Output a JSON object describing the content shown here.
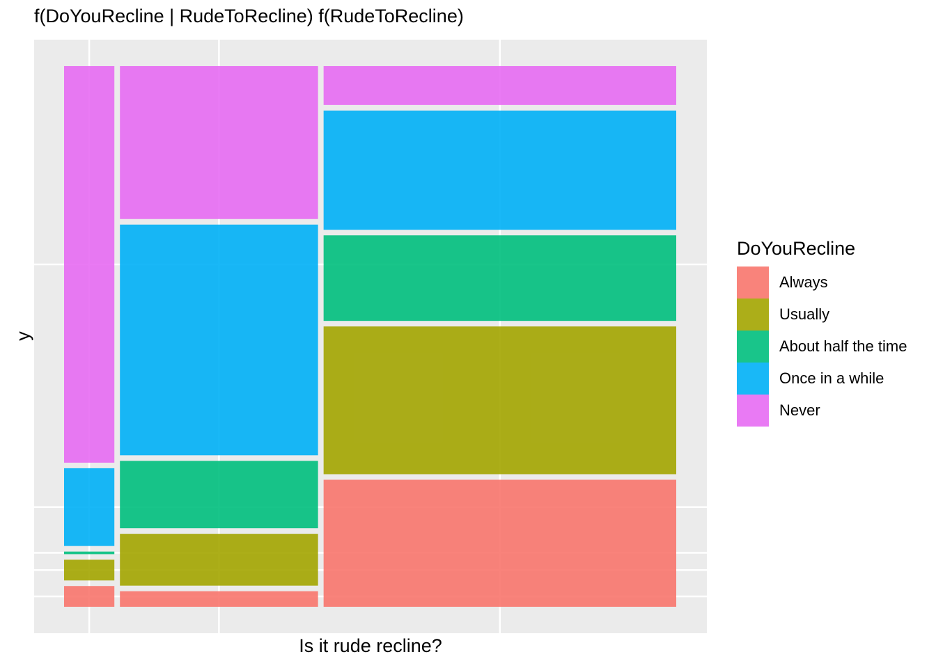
{
  "chart_data": {
    "type": "mosaic",
    "title": "f(DoYouRecline | RudeToRecline) f(RudeToRecline)",
    "xlabel": "Is it rude recline?",
    "ylabel": "y",
    "legend": {
      "title": "DoYouRecline",
      "position": "right",
      "entries": [
        {
          "name": "Always",
          "color": "#F8766D"
        },
        {
          "name": "Usually",
          "color": "#A3A500"
        },
        {
          "name": "About half the time",
          "color": "#00BF7D"
        },
        {
          "name": "Once in a while",
          "color": "#00B0F6"
        },
        {
          "name": "Never",
          "color": "#E76BF3"
        }
      ]
    },
    "grid": true,
    "x_tick_labels_shown": false,
    "y_tick_labels_shown": false,
    "columns": [
      {
        "width": 0.082,
        "segments": [
          0.04,
          0.04,
          0.005,
          0.15,
          0.765
        ]
      },
      {
        "width": 0.323,
        "segments": [
          0.03,
          0.1,
          0.13,
          0.445,
          0.295
        ]
      },
      {
        "width": 0.575,
        "segments": [
          0.245,
          0.285,
          0.165,
          0.23,
          0.075
        ]
      }
    ]
  }
}
